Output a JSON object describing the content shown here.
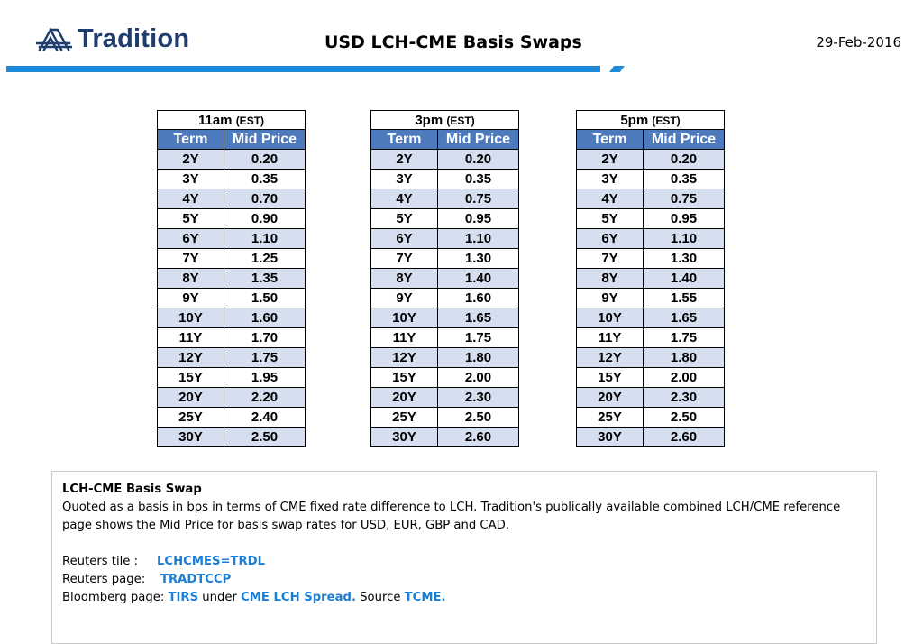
{
  "header": {
    "logo_text": "Tradition",
    "title": "USD LCH-CME Basis Swaps",
    "date": "29-Feb-2016"
  },
  "colors": {
    "brand_blue": "#1f8ad9",
    "table_header": "#4d79bd",
    "table_band": "#d6dff0",
    "link_blue": "#1a7dd6"
  },
  "table_headers": {
    "term": "Term",
    "mid": "Mid Price",
    "tz": "(EST)"
  },
  "tables": [
    {
      "time": "11am",
      "rows": [
        [
          "2Y",
          "0.20"
        ],
        [
          "3Y",
          "0.35"
        ],
        [
          "4Y",
          "0.70"
        ],
        [
          "5Y",
          "0.90"
        ],
        [
          "6Y",
          "1.10"
        ],
        [
          "7Y",
          "1.25"
        ],
        [
          "8Y",
          "1.35"
        ],
        [
          "9Y",
          "1.50"
        ],
        [
          "10Y",
          "1.60"
        ],
        [
          "11Y",
          "1.70"
        ],
        [
          "12Y",
          "1.75"
        ],
        [
          "15Y",
          "1.95"
        ],
        [
          "20Y",
          "2.20"
        ],
        [
          "25Y",
          "2.40"
        ],
        [
          "30Y",
          "2.50"
        ]
      ]
    },
    {
      "time": "3pm",
      "rows": [
        [
          "2Y",
          "0.20"
        ],
        [
          "3Y",
          "0.35"
        ],
        [
          "4Y",
          "0.75"
        ],
        [
          "5Y",
          "0.95"
        ],
        [
          "6Y",
          "1.10"
        ],
        [
          "7Y",
          "1.30"
        ],
        [
          "8Y",
          "1.40"
        ],
        [
          "9Y",
          "1.60"
        ],
        [
          "10Y",
          "1.65"
        ],
        [
          "11Y",
          "1.75"
        ],
        [
          "12Y",
          "1.80"
        ],
        [
          "15Y",
          "2.00"
        ],
        [
          "20Y",
          "2.30"
        ],
        [
          "25Y",
          "2.50"
        ],
        [
          "30Y",
          "2.60"
        ]
      ]
    },
    {
      "time": "5pm",
      "rows": [
        [
          "2Y",
          "0.20"
        ],
        [
          "3Y",
          "0.35"
        ],
        [
          "4Y",
          "0.75"
        ],
        [
          "5Y",
          "0.95"
        ],
        [
          "6Y",
          "1.10"
        ],
        [
          "7Y",
          "1.30"
        ],
        [
          "8Y",
          "1.40"
        ],
        [
          "9Y",
          "1.55"
        ],
        [
          "10Y",
          "1.65"
        ],
        [
          "11Y",
          "1.75"
        ],
        [
          "12Y",
          "1.80"
        ],
        [
          "15Y",
          "2.00"
        ],
        [
          "20Y",
          "2.30"
        ],
        [
          "25Y",
          "2.50"
        ],
        [
          "30Y",
          "2.60"
        ]
      ]
    }
  ],
  "info": {
    "heading": "LCH-CME Basis Swap",
    "body_line1": "Quoted as a basis in bps in terms of CME fixed rate difference to LCH. Tradition's publically available combined LCH/CME reference",
    "body_line2": "page shows the Mid Price for basis swap rates for USD, EUR, GBP and CAD.",
    "reuters_tile_label": "Reuters tile :",
    "reuters_tile_value": "LCHCMES=TRDL",
    "reuters_page_label": "Reuters page:",
    "reuters_page_value": "TRADTCCP",
    "bloomberg_label": "Bloomberg page:",
    "bloomberg_value": "TIRS",
    "under_text": "under",
    "cme_lch_value": "CME LCH Spread.",
    "source_text": "Source",
    "source_value": "TCME."
  }
}
